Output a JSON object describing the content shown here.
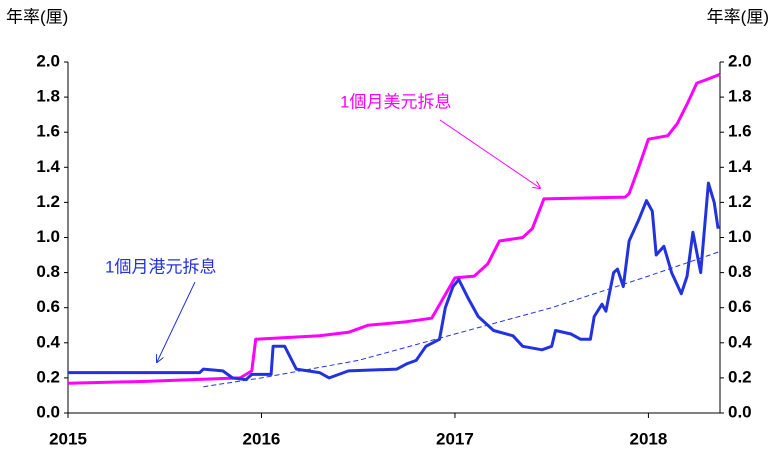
{
  "chart_data": {
    "type": "line",
    "y_label": "年率(厘)",
    "y2_label": "年率(厘)",
    "xlim": [
      2015,
      2018.37
    ],
    "xticks": [
      2015,
      2016,
      2017,
      2018
    ],
    "ylim": [
      0,
      2
    ],
    "yticks": [
      {
        "value": 0,
        "label": "0.0"
      },
      0.2,
      0.4,
      0.6,
      0.8,
      {
        "value": 1,
        "label": "1.0"
      },
      1.2,
      1.4,
      1.6,
      1.8,
      {
        "value": 2,
        "label": "2.0"
      }
    ],
    "y2lim": [
      0,
      2
    ],
    "y2ticks": [
      {
        "value": 0,
        "label": "0.0"
      },
      0.2,
      0.4,
      0.6,
      0.8,
      {
        "value": 1,
        "label": "1.0"
      },
      1.2,
      1.4,
      1.6,
      1.8,
      {
        "value": 2,
        "label": "2.0"
      }
    ],
    "annotations": [
      "1個月美元拆息",
      "1個月港元拆息"
    ],
    "series": [
      {
        "color": "#ff00ff",
        "width": 3,
        "x": [
          2015,
          2015.4,
          2015.89,
          2015.95,
          2015.97,
          2016.3,
          2016.45,
          2016.55,
          2016.75,
          2016.88,
          2017.0,
          2017.1,
          2017.17,
          2017.23,
          2017.35,
          2017.4,
          2017.46,
          2017.88,
          2017.9,
          2017.95,
          2018.0,
          2018.1,
          2018.15,
          2018.2,
          2018.25,
          2018.3,
          2018.37
        ],
        "values": [
          0.17,
          0.18,
          0.2,
          0.24,
          0.42,
          0.44,
          0.46,
          0.5,
          0.52,
          0.54,
          0.77,
          0.78,
          0.85,
          0.98,
          1.0,
          1.05,
          1.22,
          1.23,
          1.25,
          1.4,
          1.56,
          1.58,
          1.65,
          1.76,
          1.88,
          1.9,
          1.93
        ]
      },
      {
        "color": "#2233dd",
        "width": 3,
        "x": [
          2015,
          2015.68,
          2015.7,
          2015.8,
          2015.85,
          2015.92,
          2015.95,
          2016.05,
          2016.06,
          2016.12,
          2016.18,
          2016.3,
          2016.35,
          2016.45,
          2016.7,
          2016.75,
          2016.8,
          2016.85,
          2016.92,
          2016.95,
          2016.99,
          2017.02,
          2017.07,
          2017.12,
          2017.2,
          2017.3,
          2017.35,
          2017.45,
          2017.5,
          2017.52,
          2017.6,
          2017.65,
          2017.7,
          2017.72,
          2017.76,
          2017.78,
          2017.82,
          2017.84,
          2017.87,
          2017.9,
          2017.95,
          2017.99,
          2018.02,
          2018.04,
          2018.08,
          2018.12,
          2018.17,
          2018.2,
          2018.23,
          2018.27,
          2018.31,
          2018.34,
          2018.36
        ],
        "values": [
          0.23,
          0.23,
          0.25,
          0.24,
          0.2,
          0.19,
          0.22,
          0.22,
          0.38,
          0.38,
          0.25,
          0.23,
          0.2,
          0.24,
          0.25,
          0.28,
          0.3,
          0.38,
          0.42,
          0.6,
          0.72,
          0.76,
          0.65,
          0.55,
          0.47,
          0.44,
          0.38,
          0.36,
          0.38,
          0.47,
          0.45,
          0.42,
          0.42,
          0.55,
          0.62,
          0.58,
          0.8,
          0.82,
          0.72,
          0.98,
          1.1,
          1.21,
          1.15,
          0.9,
          0.95,
          0.8,
          0.68,
          0.78,
          1.03,
          0.8,
          1.31,
          1.2,
          1.05
        ]
      },
      {
        "color": "#2233dd",
        "width": 1,
        "dashed": true,
        "x": [
          2015.7,
          2016.0,
          2016.5,
          2017.0,
          2017.5,
          2018.0,
          2018.37
        ],
        "values": [
          0.15,
          0.2,
          0.3,
          0.45,
          0.6,
          0.78,
          0.92
        ]
      }
    ]
  }
}
